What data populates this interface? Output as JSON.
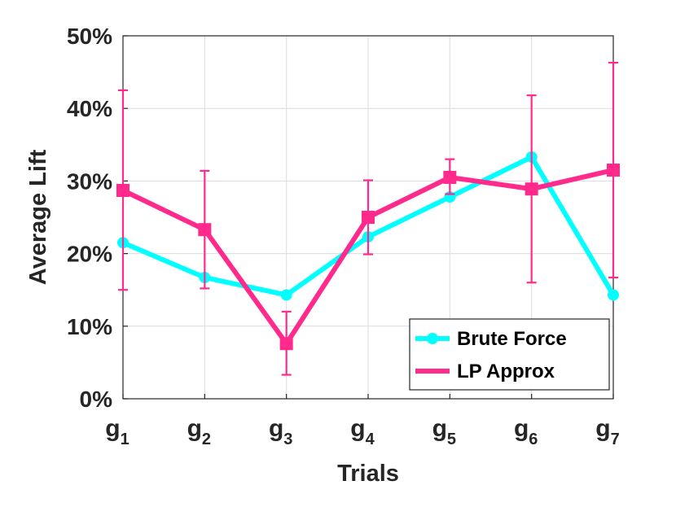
{
  "chart_data": {
    "type": "line",
    "title": "",
    "xlabel": "Trials",
    "ylabel": "Average Lift",
    "categories": [
      {
        "main": "g",
        "sub": "1"
      },
      {
        "main": "g",
        "sub": "2"
      },
      {
        "main": "g",
        "sub": "3"
      },
      {
        "main": "g",
        "sub": "4"
      },
      {
        "main": "g",
        "sub": "5"
      },
      {
        "main": "g",
        "sub": "6"
      },
      {
        "main": "g",
        "sub": "7"
      }
    ],
    "ylim": [
      0,
      50
    ],
    "yticks": [
      0,
      10,
      20,
      30,
      40,
      50
    ],
    "ytick_labels": [
      "0%",
      "10%",
      "20%",
      "30%",
      "40%",
      "50%"
    ],
    "grid": true,
    "legend_position": "bottom-right",
    "series": [
      {
        "name": "Brute Force",
        "color": "#00ffff",
        "marker": "circle",
        "values": [
          21.5,
          16.7,
          14.3,
          22.3,
          27.8,
          33.3,
          14.3
        ]
      },
      {
        "name": "LP Approx",
        "color": "#ff2a8c",
        "marker": "square",
        "values": [
          28.7,
          23.3,
          7.6,
          25.0,
          30.5,
          28.9,
          31.5
        ],
        "error_low": [
          15.0,
          15.2,
          3.3,
          19.9,
          28.2,
          16.0,
          16.7
        ],
        "error_high": [
          42.5,
          31.4,
          12.0,
          30.1,
          33.0,
          41.8,
          46.3
        ]
      }
    ]
  }
}
